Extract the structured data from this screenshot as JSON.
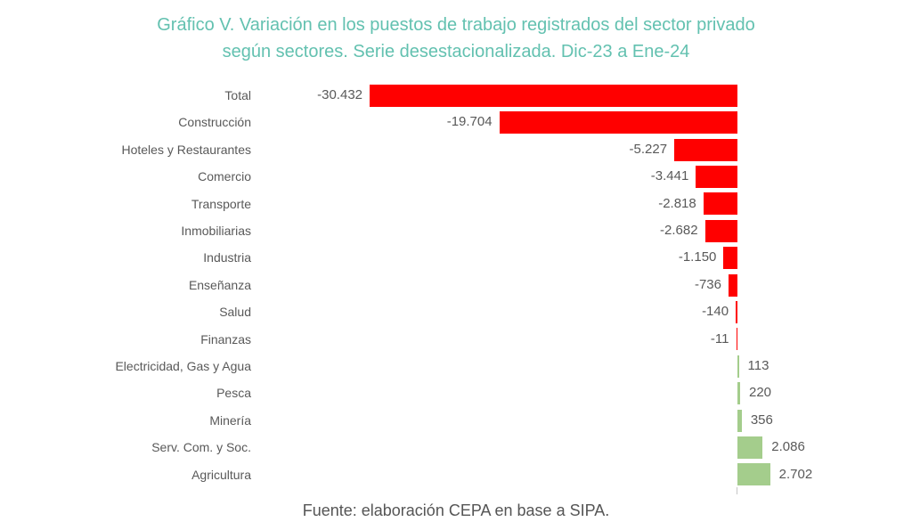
{
  "title": {
    "line1": "Gráfico V. Variación en los puestos de trabajo registrados del sector privado",
    "line2": "según sectores. Serie desestacionalizada. Dic-23 a Ene-24",
    "color": "#63c1b0"
  },
  "footer": {
    "source_note": "Fuente: elaboración CEPA en base a SIPA."
  },
  "colors": {
    "negative_bar": "#ff0000",
    "positive_bar": "#a4cd8c",
    "text_labels": "#595959",
    "title": "#63c1b0"
  },
  "chart_data": {
    "type": "bar",
    "orientation": "horizontal",
    "title": "Gráfico V. Variación en los puestos de trabajo registrados del sector privado según sectores. Serie desestacionalizada. Dic-23 a Ene-24",
    "categories": [
      "Total",
      "Construcción",
      "Hoteles y Restaurantes",
      "Comercio",
      "Transporte",
      "Inmobiliarias",
      "Industria",
      "Enseñanza",
      "Salud",
      "Finanzas",
      "Electricidad, Gas y Agua",
      "Pesca",
      "Minería",
      "Serv. Com. y Soc.",
      "Agricultura"
    ],
    "values": [
      -30432,
      -19704,
      -5227,
      -3441,
      -2818,
      -2682,
      -1150,
      -736,
      -140,
      -11,
      113,
      220,
      356,
      2086,
      2702
    ],
    "value_labels": [
      "-30.432",
      "-19.704",
      "-5.227",
      "-3.441",
      "-2.818",
      "-2.682",
      "-1.150",
      "-736",
      "-140",
      "-11",
      "113",
      "220",
      "356",
      "2.086",
      "2.702"
    ],
    "xlim": [
      -32000,
      6000
    ],
    "grid": false,
    "legend": false,
    "data_labels": "outside-end",
    "negative_color": "#ff0000",
    "positive_color": "#a4cd8c",
    "source_note": "Fuente: elaboración CEPA en base a SIPA."
  }
}
